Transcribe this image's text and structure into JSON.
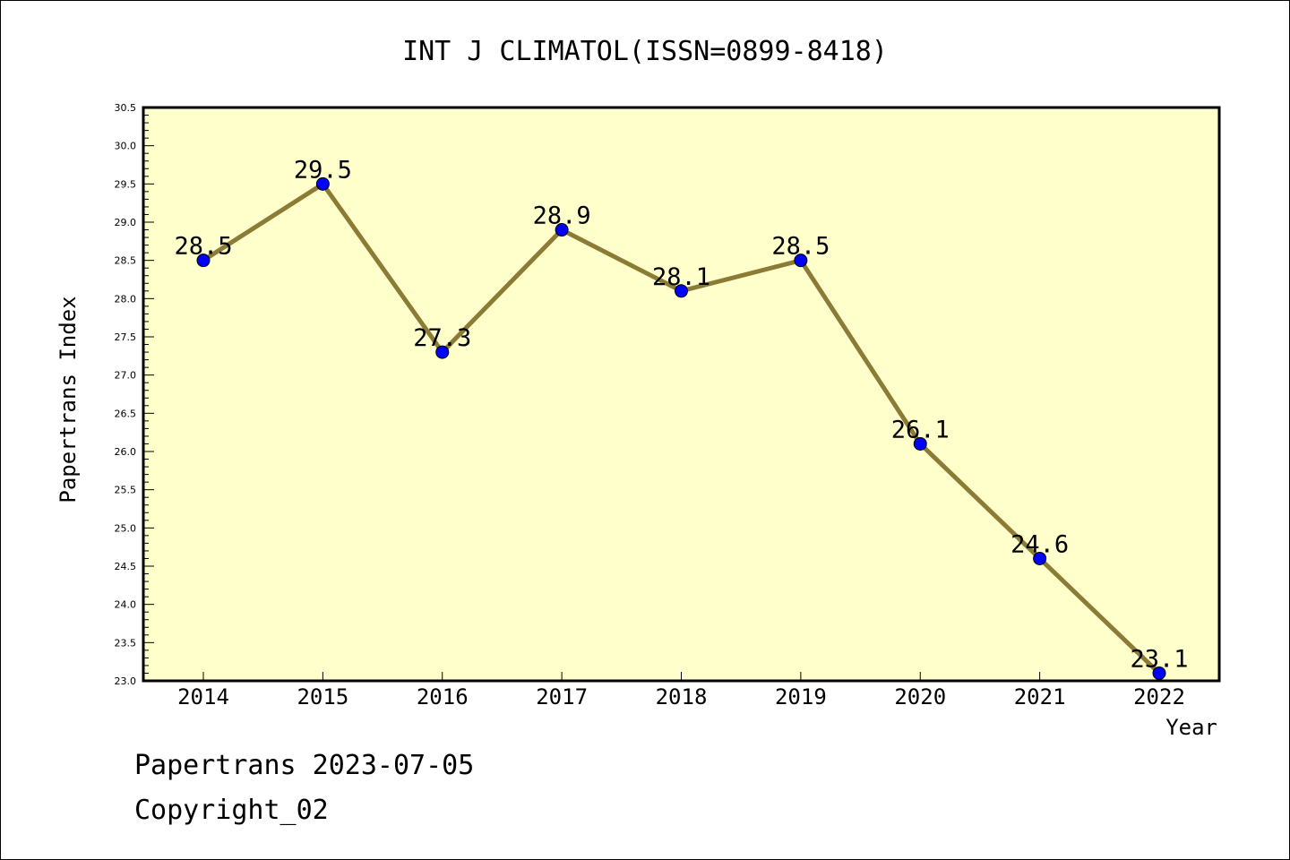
{
  "chart_data": {
    "type": "line",
    "title": "INT J CLIMATOL(ISSN=0899-8418)",
    "xlabel": "Year",
    "ylabel": "Papertrans Index",
    "categories": [
      "2014",
      "2015",
      "2016",
      "2017",
      "2018",
      "2019",
      "2020",
      "2021",
      "2022"
    ],
    "series": [
      {
        "values": [
          28.5,
          29.5,
          27.3,
          28.9,
          28.1,
          28.5,
          26.1,
          24.6,
          23.1
        ]
      }
    ],
    "data_labels": [
      "28.5",
      "29.5",
      "27.3",
      "28.9",
      "28.1",
      "28.5",
      "26.1",
      "24.6",
      "23.1"
    ],
    "ylim": [
      23.0,
      30.5
    ],
    "yticks": [
      "23.0",
      "23.5",
      "24.0",
      "24.5",
      "25.0",
      "25.5",
      "26.0",
      "26.5",
      "27.0",
      "27.5",
      "28.0",
      "28.5",
      "29.0",
      "29.5",
      "30.0",
      "30.5"
    ],
    "grid": false,
    "colors": {
      "plot_background": "#FFFFCC",
      "line": "#8B7B35",
      "marker": "#0000FF"
    }
  },
  "footer": {
    "date_line": "Papertrans 2023-07-05",
    "copyright": "Copyright_02"
  }
}
